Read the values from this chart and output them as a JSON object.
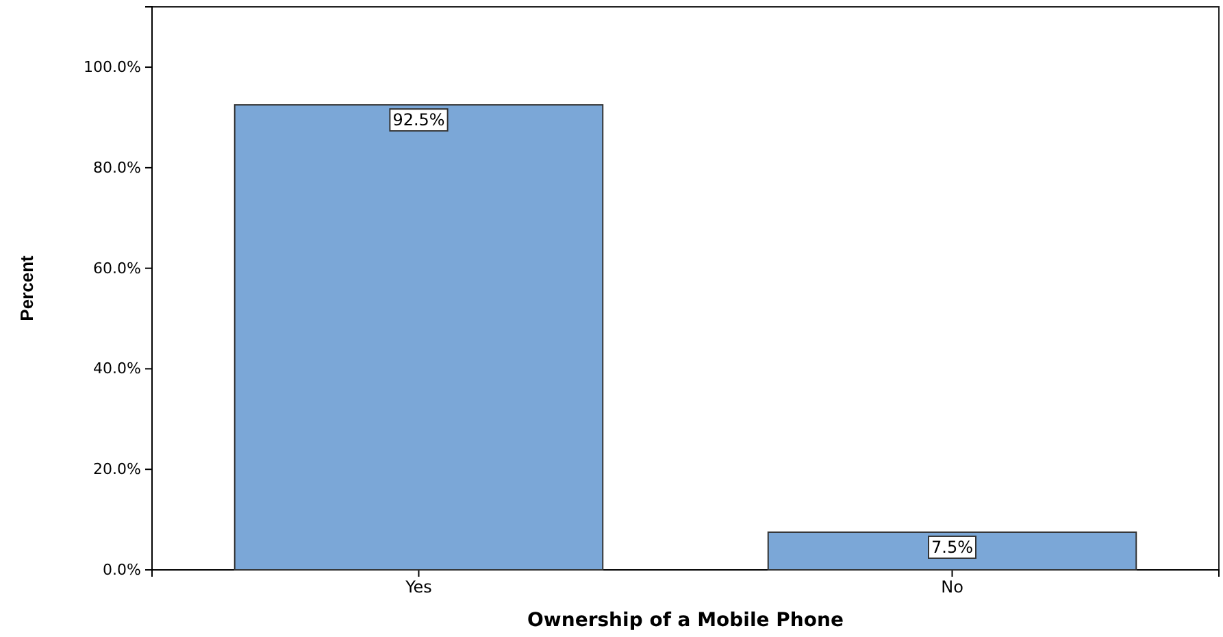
{
  "chart_data": {
    "type": "bar",
    "xlabel": "Ownership of a Mobile Phone",
    "ylabel": "Percent",
    "categories": [
      "Yes",
      "No"
    ],
    "values": [
      92.5,
      7.5
    ],
    "value_labels": [
      "92.5%",
      "7.5%"
    ],
    "color": "#7ba7d7",
    "ylim": [
      0,
      112
    ],
    "yticks": [
      {
        "value": 0,
        "label": "0.0%"
      },
      {
        "value": 20,
        "label": "20.0%"
      },
      {
        "value": 40,
        "label": "40.0%"
      },
      {
        "value": 60,
        "label": "60.0%"
      },
      {
        "value": 80,
        "label": "80.0%"
      },
      {
        "value": 100,
        "label": "100.0%"
      }
    ],
    "grid": false
  }
}
